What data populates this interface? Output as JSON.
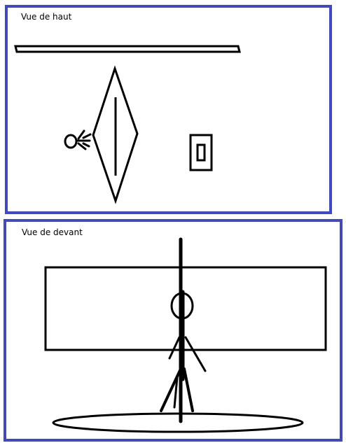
{
  "panels": {
    "top_view": {
      "label": "Vue de haut"
    },
    "front_view": {
      "label": "Vue de devant"
    }
  },
  "colors": {
    "frame_border": "#3f48cc",
    "ink": "#000000",
    "background": "#ffffff"
  }
}
